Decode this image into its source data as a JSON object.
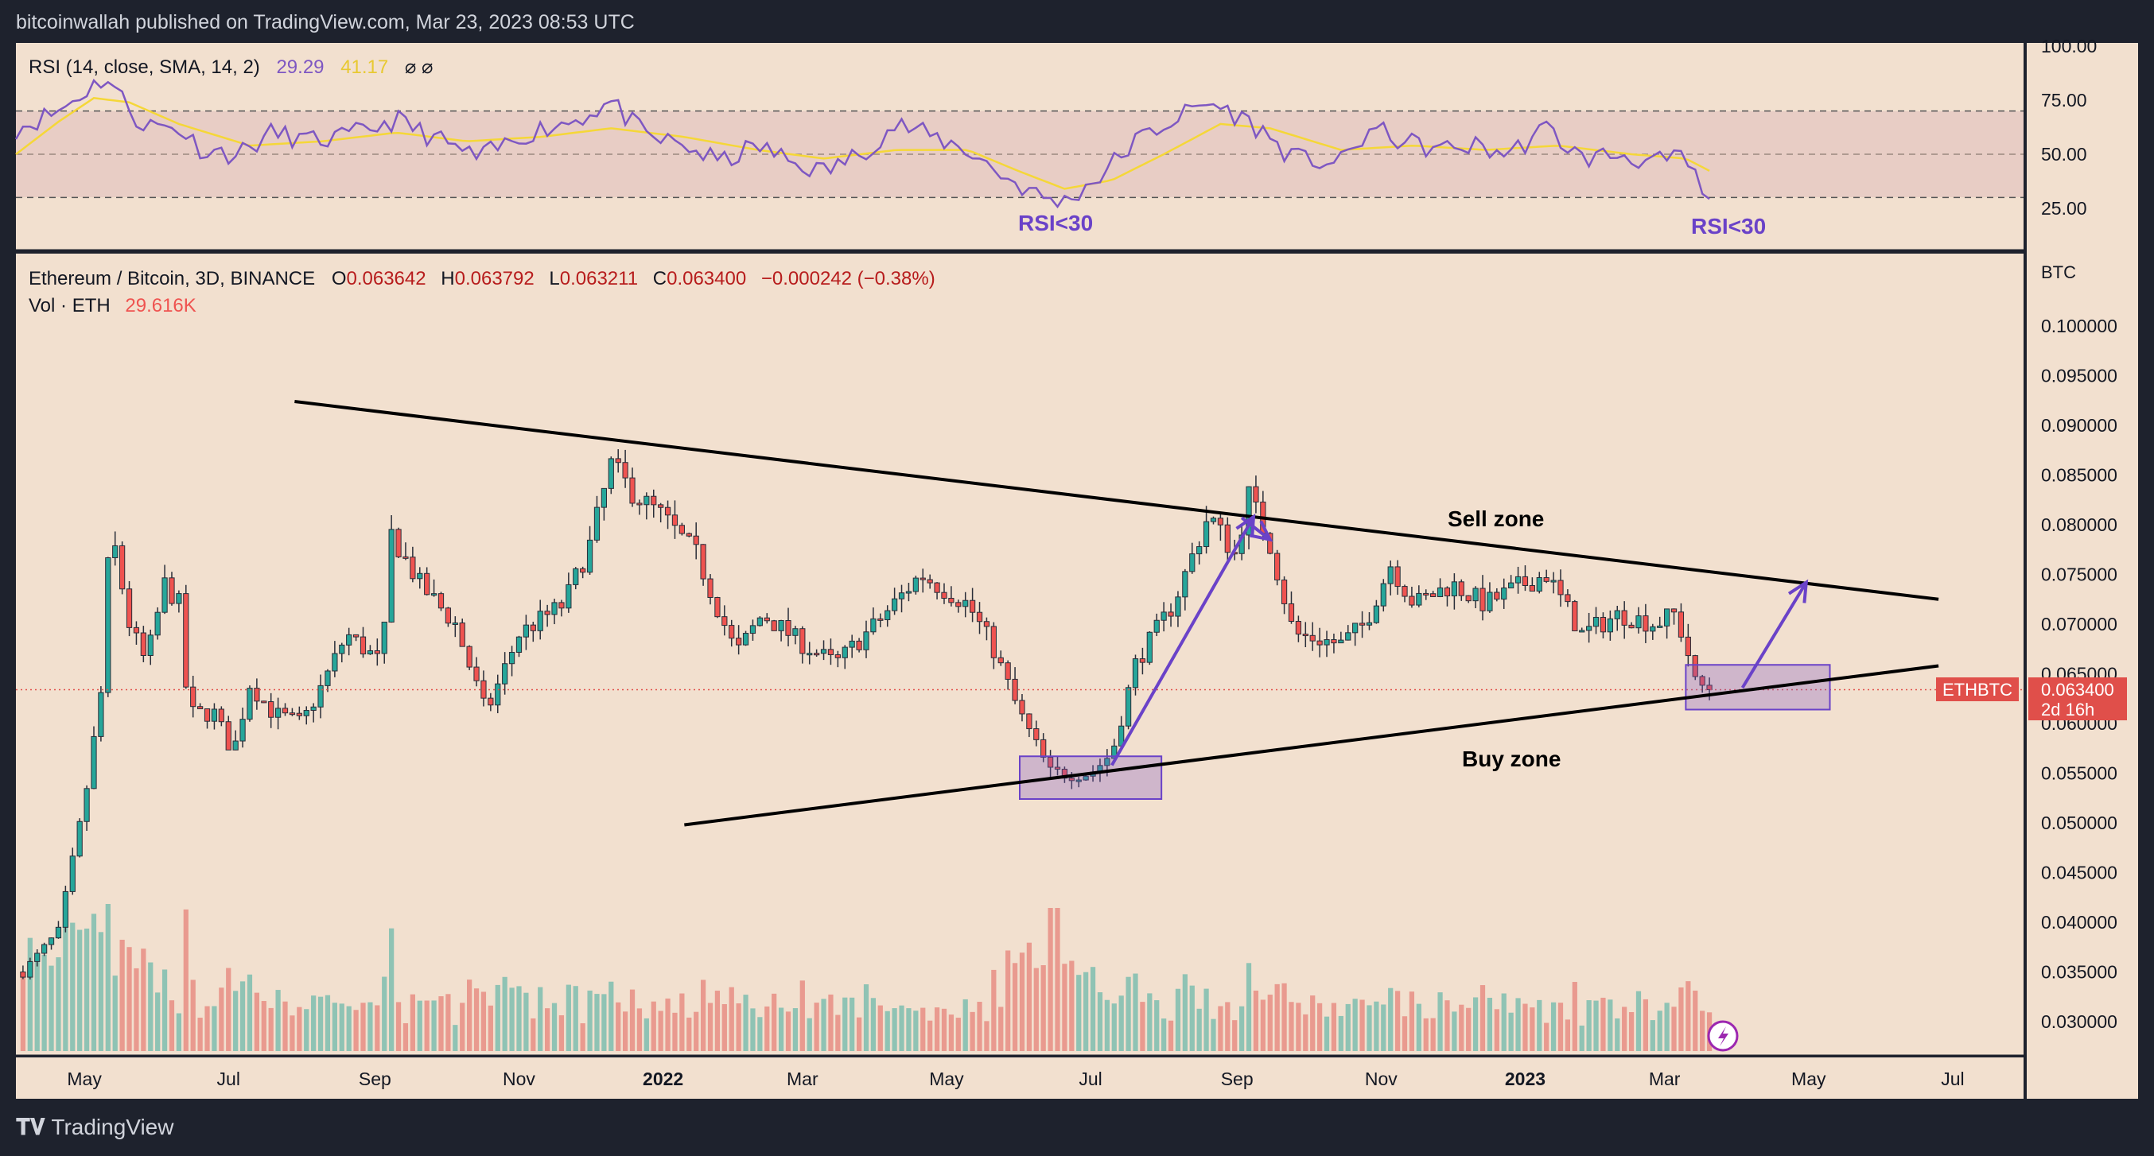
{
  "header": {
    "publisher_line": "bitcoinwallah published on TradingView.com, Mar 23, 2023 08:53 UTC"
  },
  "footer": {
    "brand": "TradingView"
  },
  "colors": {
    "up": "#26a69a",
    "down": "#ef5350",
    "background": "#f2e0cf",
    "rsi_line": "#7e57c2",
    "rsi_sma": "#f5d738",
    "annotation": "#6a42c8",
    "price_tag": "#e04f4a",
    "frame": "#1e222d"
  },
  "rsi_panel": {
    "legend_name": "RSI (14, close, SMA, 14, 2)",
    "legend_rsi": "29.29",
    "legend_sma": "41.17",
    "legend_icons": "⌀ ⌀",
    "axis_labels": [
      "100.00",
      "75.00",
      "50.00",
      "25.00"
    ],
    "annotation_left": "RSI<30",
    "annotation_right": "RSI<30"
  },
  "price_panel": {
    "symbol_line": "Ethereum / Bitcoin, 3D, BINANCE",
    "ohlc": {
      "o_label": "O",
      "o": "0.063642",
      "h_label": "H",
      "h": "0.063792",
      "l_label": "L",
      "l": "0.063211",
      "c_label": "C",
      "c": "0.063400",
      "change": "−0.000242 (−0.38%)"
    },
    "vol_label": "Vol · ETH",
    "vol_value": "29.616K",
    "axis_unit": "BTC",
    "axis_labels": [
      "0.100000",
      "0.095000",
      "0.090000",
      "0.085000",
      "0.080000",
      "0.075000",
      "0.070000",
      "0.065000",
      "0.060000",
      "0.055000",
      "0.050000",
      "0.045000",
      "0.040000",
      "0.035000",
      "0.030000"
    ],
    "price_tag": {
      "symbol": "ETHBTC",
      "price": "0.063400",
      "countdown": "2d 16h"
    },
    "sell_zone_label": "Sell zone",
    "buy_zone_label": "Buy zone"
  },
  "time_axis": [
    "May",
    "Jul",
    "Sep",
    "Nov",
    "2022",
    "Mar",
    "May",
    "Jul",
    "Sep",
    "Nov",
    "2023",
    "Mar",
    "May",
    "Jul"
  ],
  "chart_data": {
    "type": "candlestick",
    "pair": "ETH/BTC",
    "timeframe": "3D",
    "y_unit": "BTC",
    "ylim": [
      0.027,
      0.103
    ],
    "x_range": [
      "2021-04-02",
      "2023-07-31"
    ],
    "last_price": 0.0634,
    "price_anchors": [
      [
        "2021-04-05",
        0.035
      ],
      [
        "2021-04-20",
        0.039
      ],
      [
        "2021-05-01",
        0.052
      ],
      [
        "2021-05-08",
        0.063
      ],
      [
        "2021-05-12",
        0.08
      ],
      [
        "2021-05-20",
        0.07
      ],
      [
        "2021-05-27",
        0.066
      ],
      [
        "2021-06-04",
        0.074
      ],
      [
        "2021-06-10",
        0.072
      ],
      [
        "2021-06-14",
        0.061
      ],
      [
        "2021-06-25",
        0.061
      ],
      [
        "2021-07-03",
        0.057
      ],
      [
        "2021-07-10",
        0.064
      ],
      [
        "2021-07-20",
        0.061
      ],
      [
        "2021-08-01",
        0.06
      ],
      [
        "2021-08-10",
        0.064
      ],
      [
        "2021-08-20",
        0.069
      ],
      [
        "2021-09-04",
        0.066
      ],
      [
        "2021-09-08",
        0.079
      ],
      [
        "2021-09-20",
        0.074
      ],
      [
        "2021-10-05",
        0.07
      ],
      [
        "2021-10-18",
        0.061
      ],
      [
        "2021-11-01",
        0.069
      ],
      [
        "2021-11-20",
        0.072
      ],
      [
        "2021-12-01",
        0.078
      ],
      [
        "2021-12-10",
        0.086
      ],
      [
        "2021-12-20",
        0.083
      ],
      [
        "2021-12-31",
        0.081
      ],
      [
        "2022-01-15",
        0.077
      ],
      [
        "2022-02-01",
        0.067
      ],
      [
        "2022-02-12",
        0.071
      ],
      [
        "2022-03-01",
        0.068
      ],
      [
        "2022-03-15",
        0.066
      ],
      [
        "2022-04-01",
        0.07
      ],
      [
        "2022-04-20",
        0.075
      ],
      [
        "2022-05-10",
        0.072
      ],
      [
        "2022-05-20",
        0.068
      ],
      [
        "2022-06-01",
        0.061
      ],
      [
        "2022-06-14",
        0.055
      ],
      [
        "2022-07-01",
        0.055
      ],
      [
        "2022-07-10",
        0.057
      ],
      [
        "2022-07-20",
        0.066
      ],
      [
        "2022-08-05",
        0.072
      ],
      [
        "2022-08-20",
        0.081
      ],
      [
        "2022-08-31",
        0.077
      ],
      [
        "2022-09-06",
        0.083
      ],
      [
        "2022-09-15",
        0.078
      ],
      [
        "2022-09-25",
        0.069
      ],
      [
        "2022-10-15",
        0.068
      ],
      [
        "2022-10-25",
        0.07
      ],
      [
        "2022-11-05",
        0.076
      ],
      [
        "2022-11-15",
        0.072
      ],
      [
        "2022-12-01",
        0.074
      ],
      [
        "2022-12-15",
        0.072
      ],
      [
        "2022-12-31",
        0.074
      ],
      [
        "2023-01-10",
        0.075
      ],
      [
        "2023-01-25",
        0.069
      ],
      [
        "2023-02-10",
        0.071
      ],
      [
        "2023-02-25",
        0.07
      ],
      [
        "2023-03-05",
        0.071
      ],
      [
        "2023-03-10",
        0.068
      ],
      [
        "2023-03-14",
        0.064
      ],
      [
        "2023-03-22",
        0.0634
      ]
    ],
    "rsi": {
      "legend_value": 29.29,
      "sma_value": 41.17,
      "ylim": [
        15,
        100
      ],
      "levels": [
        30,
        50,
        70
      ],
      "anchors": [
        [
          "2021-04-02",
          62
        ],
        [
          "2021-04-20",
          70
        ],
        [
          "2021-05-10",
          86
        ],
        [
          "2021-05-25",
          64
        ],
        [
          "2021-06-10",
          62
        ],
        [
          "2021-06-20",
          52
        ],
        [
          "2021-07-05",
          50
        ],
        [
          "2021-07-20",
          60
        ],
        [
          "2021-08-05",
          56
        ],
        [
          "2021-08-20",
          58
        ],
        [
          "2021-09-10",
          66
        ],
        [
          "2021-09-25",
          58
        ],
        [
          "2021-10-15",
          48
        ],
        [
          "2021-11-05",
          60
        ],
        [
          "2021-11-25",
          66
        ],
        [
          "2021-12-10",
          74
        ],
        [
          "2021-12-25",
          58
        ],
        [
          "2022-01-10",
          54
        ],
        [
          "2022-01-25",
          46
        ],
        [
          "2022-02-10",
          54
        ],
        [
          "2022-02-25",
          46
        ],
        [
          "2022-03-10",
          42
        ],
        [
          "2022-03-25",
          50
        ],
        [
          "2022-04-10",
          64
        ],
        [
          "2022-04-25",
          58
        ],
        [
          "2022-05-10",
          52
        ],
        [
          "2022-05-25",
          40
        ],
        [
          "2022-06-10",
          30
        ],
        [
          "2022-06-20",
          28
        ],
        [
          "2022-07-05",
          40
        ],
        [
          "2022-07-20",
          56
        ],
        [
          "2022-08-05",
          66
        ],
        [
          "2022-08-20",
          74
        ],
        [
          "2022-09-01",
          68
        ],
        [
          "2022-09-10",
          62
        ],
        [
          "2022-09-25",
          48
        ],
        [
          "2022-10-15",
          46
        ],
        [
          "2022-10-28",
          62
        ],
        [
          "2022-11-10",
          56
        ],
        [
          "2022-11-25",
          52
        ],
        [
          "2022-12-10",
          54
        ],
        [
          "2022-12-25",
          50
        ],
        [
          "2023-01-10",
          62
        ],
        [
          "2023-01-25",
          48
        ],
        [
          "2023-02-10",
          50
        ],
        [
          "2023-02-25",
          46
        ],
        [
          "2023-03-10",
          48
        ],
        [
          "2023-03-17",
          32
        ],
        [
          "2023-03-22",
          29.3
        ]
      ],
      "sma_anchors": [
        [
          "2021-04-02",
          50
        ],
        [
          "2021-04-20",
          65
        ],
        [
          "2021-05-05",
          76
        ],
        [
          "2021-05-20",
          74
        ],
        [
          "2021-06-10",
          64
        ],
        [
          "2021-07-10",
          54
        ],
        [
          "2021-08-10",
          56
        ],
        [
          "2021-09-10",
          60
        ],
        [
          "2021-10-10",
          56
        ],
        [
          "2021-11-10",
          58
        ],
        [
          "2021-12-10",
          62
        ],
        [
          "2022-01-10",
          58
        ],
        [
          "2022-02-10",
          52
        ],
        [
          "2022-03-10",
          48
        ],
        [
          "2022-04-10",
          52
        ],
        [
          "2022-05-10",
          52
        ],
        [
          "2022-06-01",
          42
        ],
        [
          "2022-06-20",
          34
        ],
        [
          "2022-07-10",
          38
        ],
        [
          "2022-08-01",
          50
        ],
        [
          "2022-08-25",
          64
        ],
        [
          "2022-09-15",
          62
        ],
        [
          "2022-10-15",
          52
        ],
        [
          "2022-11-15",
          54
        ],
        [
          "2022-12-15",
          52
        ],
        [
          "2023-01-15",
          54
        ],
        [
          "2023-02-15",
          50
        ],
        [
          "2023-03-10",
          48
        ],
        [
          "2023-03-22",
          41.2
        ]
      ]
    },
    "trendlines": [
      {
        "name": "upper-resistance",
        "from": [
          "2021-07-29",
          0.0924
        ],
        "to": [
          "2023-06-25",
          0.0725
        ]
      },
      {
        "name": "lower-support",
        "from": [
          "2022-01-10",
          0.0498
        ],
        "to": [
          "2023-06-25",
          0.0658
        ]
      }
    ],
    "zones": [
      {
        "name": "buy-box-2022",
        "x": [
          "2022-06-01",
          "2022-07-31"
        ],
        "y": [
          0.0524,
          0.0567
        ]
      },
      {
        "name": "buy-box-2023",
        "x": [
          "2023-03-10",
          "2023-05-10"
        ],
        "y": [
          0.0614,
          0.0659
        ]
      }
    ],
    "arrows": [
      {
        "from": [
          "2022-07-10",
          0.0558
        ],
        "to": [
          "2022-09-08",
          0.0808
        ]
      },
      {
        "from": [
          "2022-09-03",
          0.0807
        ],
        "to": [
          "2022-09-15",
          0.0785
        ]
      },
      {
        "from": [
          "2023-04-03",
          0.0636
        ],
        "to": [
          "2023-04-30",
          0.0742
        ]
      }
    ]
  }
}
